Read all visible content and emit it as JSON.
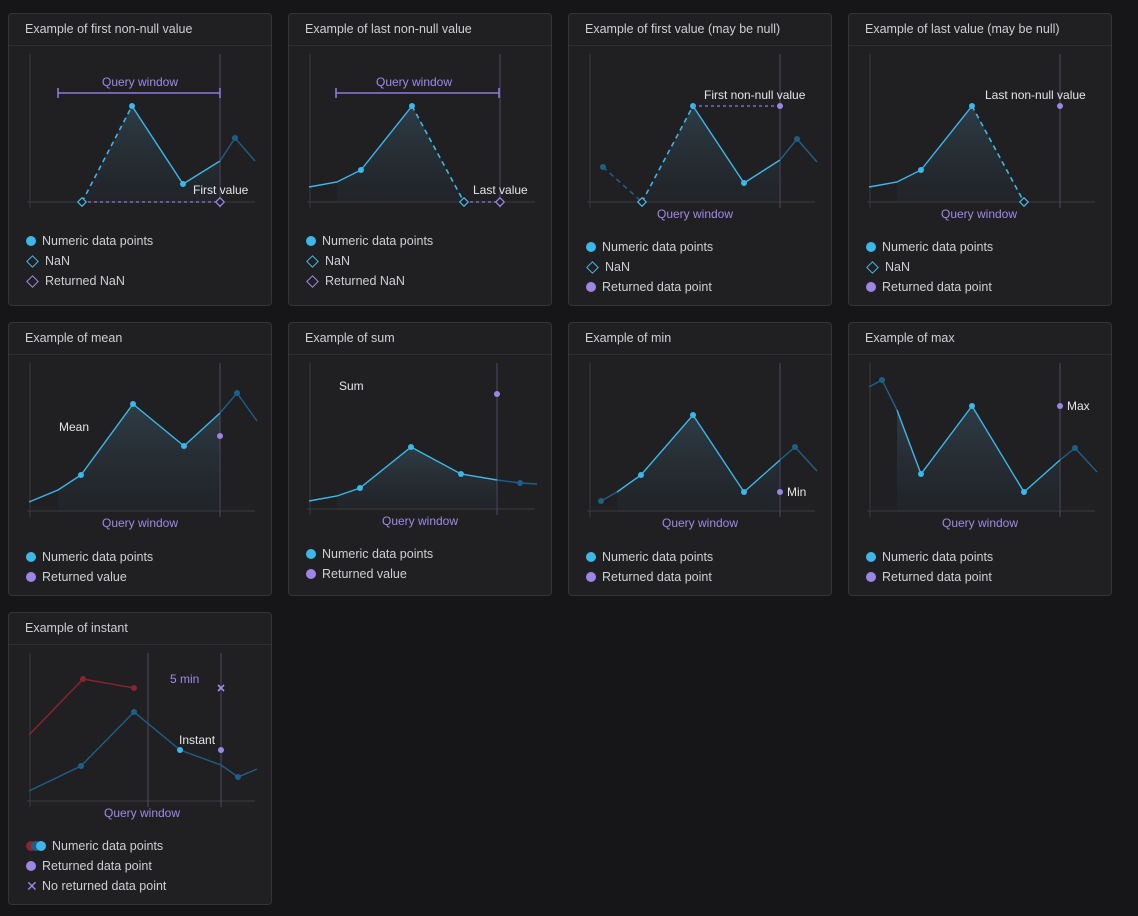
{
  "colors": {
    "blue": "#3db6e8",
    "dim_blue": "#1f5f86",
    "purple": "#9d85e6",
    "red": "#8a2430"
  },
  "cards": [
    {
      "title": "Example of first non-null value",
      "labels": [
        "Query window",
        "First value"
      ],
      "legend": [
        {
          "icon": "dot",
          "text": "Numeric data points"
        },
        {
          "icon": "nan",
          "text": "NaN"
        },
        {
          "icon": "returned-nan",
          "text": "Returned NaN"
        }
      ]
    },
    {
      "title": "Example of last non-null value",
      "labels": [
        "Query window",
        "Last value"
      ],
      "legend": [
        {
          "icon": "dot",
          "text": "Numeric data points"
        },
        {
          "icon": "nan",
          "text": "NaN"
        },
        {
          "icon": "returned-nan",
          "text": "Returned NaN"
        }
      ]
    },
    {
      "title": "Example of first value (may be null)",
      "labels": [
        "First non-null value",
        "Query window"
      ],
      "legend": [
        {
          "icon": "dot",
          "text": "Numeric data points"
        },
        {
          "icon": "nan",
          "text": "NaN"
        },
        {
          "icon": "returned-dot",
          "text": "Returned data point"
        }
      ]
    },
    {
      "title": "Example of last value (may be null)",
      "labels": [
        "Last non-null value",
        "Query window"
      ],
      "legend": [
        {
          "icon": "dot",
          "text": "Numeric data points"
        },
        {
          "icon": "nan",
          "text": "NaN"
        },
        {
          "icon": "returned-dot",
          "text": "Returned data point"
        }
      ]
    },
    {
      "title": "Example of mean",
      "labels": [
        "Mean",
        "Query window"
      ],
      "legend": [
        {
          "icon": "dot",
          "text": "Numeric data points"
        },
        {
          "icon": "returned-dot",
          "text": "Returned value"
        }
      ]
    },
    {
      "title": "Example of sum",
      "labels": [
        "Sum",
        "Query window"
      ],
      "legend": [
        {
          "icon": "dot",
          "text": "Numeric data points"
        },
        {
          "icon": "returned-dot",
          "text": "Returned value"
        }
      ]
    },
    {
      "title": "Example of min",
      "labels": [
        "Min",
        "Query window"
      ],
      "legend": [
        {
          "icon": "dot",
          "text": "Numeric data points"
        },
        {
          "icon": "returned-dot",
          "text": "Returned data point"
        }
      ]
    },
    {
      "title": "Example of max",
      "labels": [
        "Max",
        "Query window"
      ],
      "legend": [
        {
          "icon": "dot",
          "text": "Numeric data points"
        },
        {
          "icon": "returned-dot",
          "text": "Returned data point"
        }
      ]
    },
    {
      "title": "Example of instant",
      "labels": [
        "5 min",
        "Instant",
        "Query window"
      ],
      "legend": [
        {
          "icon": "multi-dot",
          "text": "Numeric data points"
        },
        {
          "icon": "returned-dot",
          "text": "Returned data point"
        },
        {
          "icon": "x",
          "text": "No returned data point"
        }
      ]
    }
  ]
}
